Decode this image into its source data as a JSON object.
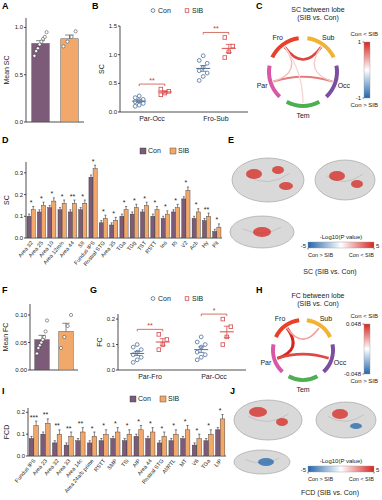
{
  "chart_data": [
    {
      "panel": "A",
      "type": "bar",
      "categories": [
        "Con",
        "SIB"
      ],
      "tick_labels": "y",
      "y_label": "Mean SC",
      "ylim": [
        0,
        1.1
      ],
      "yticks": [
        {
          "value": 0,
          "label": "0.0"
        },
        {
          "value": 0.5,
          "label": "0.5"
        },
        {
          "value": 1,
          "label": "1.0"
        }
      ],
      "values": [
        0.83,
        0.88
      ],
      "errors": [
        0.03,
        0.04
      ],
      "colors": [
        "#7b5b78",
        "#f3a86b"
      ],
      "points": [
        [
          0.7,
          0.75,
          0.78,
          0.82,
          0.85,
          0.88,
          0.9,
          0.95
        ],
        [
          0.8,
          0.85,
          0.9,
          0.96
        ]
      ]
    },
    {
      "panel": "B",
      "type": "scatter",
      "y_label": "SC",
      "categories": [
        "Par-Occ",
        "Fro-Sub"
      ],
      "ylim": [
        0,
        1.5
      ],
      "yticks": [
        {
          "value": 0,
          "label": "0.0"
        },
        {
          "value": 0.5,
          "label": "0.5"
        },
        {
          "value": 1,
          "label": "1.0"
        },
        {
          "value": 1.5,
          "label": "1.5"
        }
      ],
      "legend": "top",
      "series": [
        {
          "name": "Con",
          "color": "#4d6f99",
          "marker": "circle",
          "values": [
            0.19,
            0.76
          ],
          "errors": [
            0.02,
            0.05
          ],
          "points": [
            [
              0.1,
              0.12,
              0.15,
              0.18,
              0.2,
              0.22,
              0.25,
              0.28
            ],
            [
              0.55,
              0.62,
              0.68,
              0.72,
              0.78,
              0.85,
              0.9,
              0.98
            ]
          ]
        },
        {
          "name": "SIB",
          "color": "#d94b4b",
          "marker": "square",
          "values": [
            0.35,
            1.11
          ],
          "errors": [
            0.02,
            0.07
          ],
          "points": [
            [
              0.3,
              0.33,
              0.36,
              0.4
            ],
            [
              0.95,
              1.05,
              1.15,
              1.3
            ]
          ]
        }
      ],
      "significance": [
        "**",
        "**"
      ]
    },
    {
      "panel": "C",
      "type": "chord",
      "title": "SC between lobe (SIB vs. Con)",
      "nodes": [
        "Fro",
        "Sub",
        "Occ",
        "Tem",
        "Par"
      ],
      "colors": [
        "#e8402a",
        "#f2b233",
        "#7b4fa0",
        "#4caf50",
        "#d957a6"
      ],
      "links": [
        {
          "source": "Fro",
          "target": "Sub",
          "value": 0.85
        },
        {
          "source": "Par",
          "target": "Occ",
          "value": 0.6
        },
        {
          "source": "Fro",
          "target": "Par",
          "value": 0.3
        },
        {
          "source": "Sub",
          "target": "Occ",
          "value": 0.25
        },
        {
          "source": "Fro",
          "target": "Tem",
          "value": 0.2
        }
      ],
      "colorbar": {
        "range": [
          -1,
          1
        ],
        "ticks": [
          -1,
          1
        ],
        "labels": [
          "Con > SIB",
          "Con < SIB"
        ]
      }
    },
    {
      "panel": "D",
      "type": "bar",
      "y_label": "SC",
      "legend": "top",
      "categories": [
        "Area 32",
        "Area 25",
        "Area 10",
        "Area 12m/o",
        "Area 44",
        "SII",
        "Fundus IPS",
        "Rostral STG",
        "Area 35",
        "TGa",
        "TGg",
        "TST",
        "RSTT",
        "Ins",
        "Ri",
        "V2",
        "Acb",
        "Hy",
        "Pit"
      ],
      "ylim": [
        0,
        0.35
      ],
      "yticks": [
        {
          "value": 0,
          "label": "0.0"
        },
        {
          "value": 0.1,
          "label": "0.1"
        },
        {
          "value": 0.2,
          "label": "0.2"
        },
        {
          "value": 0.3,
          "label": "0.3"
        }
      ],
      "series": [
        {
          "name": "Con",
          "color": "#7b5b78",
          "values": [
            0.1,
            0.12,
            0.14,
            0.13,
            0.12,
            0.13,
            0.28,
            0.07,
            0.06,
            0.1,
            0.11,
            0.12,
            0.1,
            0.09,
            0.12,
            0.18,
            0.09,
            0.08,
            0.03
          ],
          "errors": [
            0.01,
            0.01,
            0.01,
            0.01,
            0.01,
            0.01,
            0.01,
            0.01,
            0.01,
            0.01,
            0.01,
            0.01,
            0.01,
            0.01,
            0.01,
            0.01,
            0.01,
            0.01,
            0.01
          ]
        },
        {
          "name": "SIB",
          "color": "#f3a86b",
          "values": [
            0.13,
            0.15,
            0.17,
            0.16,
            0.16,
            0.16,
            0.32,
            0.09,
            0.08,
            0.13,
            0.14,
            0.15,
            0.13,
            0.11,
            0.14,
            0.22,
            0.12,
            0.1,
            0.05
          ],
          "errors": [
            0.015,
            0.015,
            0.015,
            0.015,
            0.015,
            0.015,
            0.015,
            0.015,
            0.015,
            0.015,
            0.015,
            0.015,
            0.015,
            0.015,
            0.015,
            0.015,
            0.015,
            0.015,
            0.015
          ]
        }
      ],
      "significance": [
        "*",
        "*",
        "*",
        "*",
        "**",
        "*",
        "*",
        "*",
        "*",
        "*",
        "*",
        "*",
        "*",
        "*",
        "*",
        "*",
        "*",
        "**",
        "*"
      ]
    },
    {
      "panel": "E",
      "type": "brain_map",
      "title": "SC (SIB vs. Con)",
      "colorbar": {
        "title": "-Log10(P value)",
        "range": [
          -5,
          5
        ],
        "ticks": [
          -5,
          5
        ],
        "labels": [
          "Con > SIB",
          "Con < SIB"
        ]
      }
    },
    {
      "panel": "F",
      "type": "bar",
      "categories": [
        "Con",
        "SIB"
      ],
      "tick_labels": "y",
      "y_label": "Mean FC",
      "ylim": [
        0,
        0.12
      ],
      "yticks": [
        {
          "value": 0,
          "label": "0.00"
        },
        {
          "value": 0.05,
          "label": "0.05"
        },
        {
          "value": 0.1,
          "label": "0.10"
        }
      ],
      "values": [
        0.055,
        0.07
      ],
      "errors": [
        0.008,
        0.015
      ],
      "colors": [
        "#7b5b78",
        "#f3a86b"
      ],
      "points": [
        [
          0.03,
          0.04,
          0.045,
          0.05,
          0.055,
          0.06,
          0.07,
          0.09
        ],
        [
          0.04,
          0.06,
          0.08,
          0.1
        ]
      ]
    },
    {
      "panel": "G",
      "type": "scatter",
      "y_label": "FC",
      "categories": [
        "Par-Fro",
        "Par-Occ"
      ],
      "ylim": [
        0,
        0.22
      ],
      "yticks": [
        {
          "value": 0,
          "label": "0.0"
        },
        {
          "value": 0.1,
          "label": "0.1"
        },
        {
          "value": 0.2,
          "label": "0.2"
        }
      ],
      "legend": "top",
      "series": [
        {
          "name": "Con",
          "color": "#4d6f99",
          "marker": "circle",
          "values": [
            0.065,
            0.08
          ],
          "errors": [
            0.008,
            0.011
          ],
          "points": [
            [
              0.03,
              0.04,
              0.05,
              0.06,
              0.07,
              0.08,
              0.09,
              0.1
            ],
            [
              0.04,
              0.05,
              0.06,
              0.07,
              0.09,
              0.1,
              0.11,
              0.13
            ]
          ]
        },
        {
          "name": "SIB",
          "color": "#d94b4b",
          "marker": "square",
          "values": [
            0.11,
            0.15
          ],
          "errors": [
            0.013,
            0.022
          ],
          "points": [
            [
              0.08,
              0.1,
              0.12,
              0.14
            ],
            [
              0.1,
              0.13,
              0.17,
              0.2
            ]
          ]
        }
      ],
      "significance": [
        "**",
        "*"
      ]
    },
    {
      "panel": "H",
      "type": "chord",
      "title": "FC between lobe (SIB vs. Con)",
      "nodes": [
        "Fro",
        "Sub",
        "Occ",
        "Tem",
        "Par"
      ],
      "colors": [
        "#e8402a",
        "#f2b233",
        "#7b4fa0",
        "#4caf50",
        "#d957a6"
      ],
      "links": [
        {
          "source": "Par",
          "target": "Fro",
          "value": 0.048
        },
        {
          "source": "Par",
          "target": "Occ",
          "value": 0.04
        },
        {
          "source": "Fro",
          "target": "Sub",
          "value": 0.02
        }
      ],
      "colorbar": {
        "range": [
          -0.048,
          0.048
        ],
        "ticks": [
          -0.048,
          0.048
        ],
        "labels": [
          "Con > SIB",
          "Con < SIB"
        ]
      }
    },
    {
      "panel": "I",
      "type": "bar",
      "y_label": "FCD",
      "legend": "top",
      "categories": [
        "Fundus IPS",
        "Area 23",
        "Area 32",
        "Area 33",
        "Area 14c",
        "Area 24a/b prime",
        "RSTT",
        "SMP",
        "TSi",
        "AIP",
        "Area 44",
        "Rostral STG",
        "AI/RTL",
        "MT",
        "V6",
        "TGa",
        "LIP"
      ],
      "ylim": [
        0,
        0.22
      ],
      "yticks": [
        {
          "value": 0,
          "label": "0.0"
        },
        {
          "value": 0.1,
          "label": "0.1"
        },
        {
          "value": 0.2,
          "label": "0.2"
        }
      ],
      "series": [
        {
          "name": "Con",
          "color": "#7b5b78",
          "values": [
            0.08,
            0.1,
            0.06,
            0.05,
            0.07,
            0.06,
            0.07,
            0.08,
            0.07,
            0.09,
            0.08,
            0.06,
            0.07,
            0.08,
            0.05,
            0.07,
            0.12
          ],
          "errors": [
            0.01,
            0.01,
            0.01,
            0.01,
            0.01,
            0.01,
            0.01,
            0.01,
            0.01,
            0.01,
            0.01,
            0.01,
            0.01,
            0.01,
            0.01,
            0.01,
            0.01
          ]
        },
        {
          "name": "SIB",
          "color": "#f3a86b",
          "values": [
            0.14,
            0.15,
            0.1,
            0.09,
            0.11,
            0.09,
            0.1,
            0.11,
            0.1,
            0.12,
            0.11,
            0.09,
            0.1,
            0.12,
            0.08,
            0.1,
            0.17
          ],
          "errors": [
            0.02,
            0.02,
            0.02,
            0.02,
            0.02,
            0.02,
            0.02,
            0.02,
            0.02,
            0.02,
            0.02,
            0.02,
            0.02,
            0.02,
            0.02,
            0.02,
            0.02
          ]
        }
      ],
      "significance": [
        "***",
        "**",
        "**",
        "**",
        "**",
        "*",
        "*",
        "*",
        "*",
        "*",
        "*",
        "*",
        "*",
        "*",
        "*",
        "*",
        "*"
      ]
    },
    {
      "panel": "J",
      "type": "brain_map",
      "title": "FCD (SIB vs. Con)",
      "colorbar": {
        "title": "-Log10(P value)",
        "range": [
          -5,
          5
        ],
        "ticks": [
          -5,
          5
        ],
        "labels": [
          "Con > SIB",
          "Con < SIB"
        ]
      }
    }
  ]
}
